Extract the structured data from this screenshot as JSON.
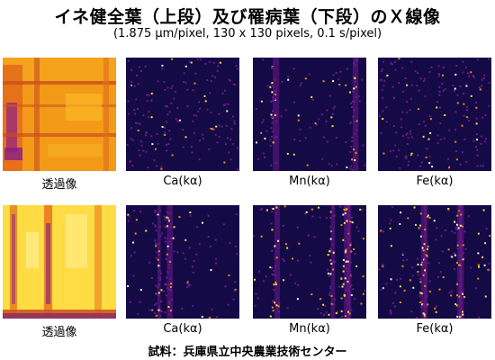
{
  "title": "イネ健全葉（上段）及び罹病葉（下段）のＸ線像",
  "subtitle": "(1.875 μm/pixel, 130 x 130 pixels, 0.1 s/pixel)",
  "rows": [
    {
      "name": "healthy",
      "captions": [
        "透過像",
        "Ca(kα)",
        "Mn(kα)",
        "Fe(kα)"
      ]
    },
    {
      "name": "diseased",
      "captions": [
        "透過像",
        "Ca(kα)",
        "Mn(kα)",
        "Fe(kα)"
      ]
    }
  ],
  "footer": "試料：兵庫県立中央農業技術センター",
  "colormap": {
    "dark": "#140a46",
    "purple": "#6a1a8a",
    "orange": "#f08a14",
    "yellow": "#ffe03a",
    "white": "#fff8c8"
  }
}
